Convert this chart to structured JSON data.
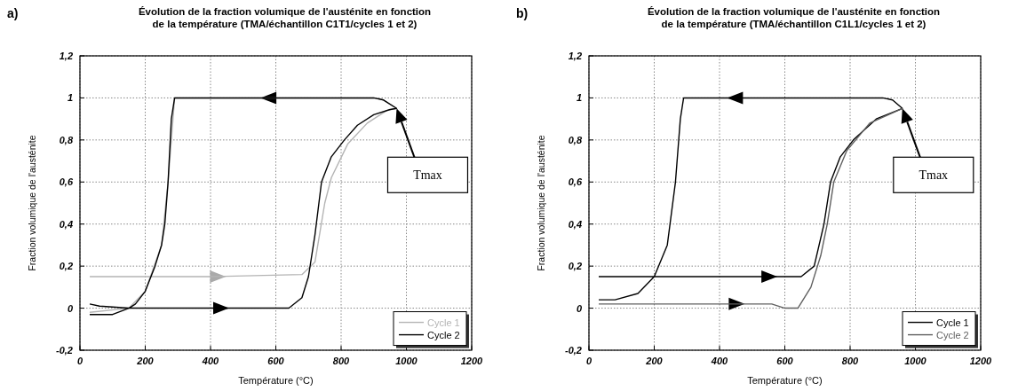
{
  "chart_data": [
    {
      "type": "line",
      "title": "Évolution de la fraction volumique de l'austénite en fonction\nde la température (TMA/échantillon C1T1/cycles 1 et 2)",
      "xlabel": "Température (°C)",
      "ylabel": "Fraction volumique de l'austénite",
      "xlim": [
        0,
        1200
      ],
      "xticks": [
        0,
        200,
        400,
        600,
        800,
        1000,
        1200
      ],
      "ylim": [
        -0.2,
        1.2
      ],
      "yticks": [
        {
          "value": -0.2,
          "label": "-0,2"
        },
        {
          "value": 0,
          "label": "0"
        },
        {
          "value": 0.2,
          "label": "0,2"
        },
        {
          "value": 0.4,
          "label": "0,4"
        },
        {
          "value": 0.6,
          "label": "0,6"
        },
        {
          "value": 0.8,
          "label": "0,8"
        },
        {
          "value": 1,
          "label": "1"
        },
        {
          "value": 1.2,
          "label": "1,2"
        }
      ],
      "grid": true,
      "legend": "bottom right",
      "annotations": [
        "a)",
        "Tmax"
      ],
      "series": [
        {
          "name": "Cycle 1",
          "color": "#b4b4b4",
          "x": [
            30,
            400,
            680,
            720,
            750,
            770,
            820,
            880,
            940,
            970,
            930,
            900,
            290,
            270,
            250,
            200,
            150,
            30
          ],
          "values": [
            0.15,
            0.15,
            0.16,
            0.22,
            0.5,
            0.62,
            0.78,
            0.88,
            0.94,
            0.95,
            0.99,
            1.0,
            1.0,
            0.6,
            0.3,
            0.08,
            0.0,
            -0.02
          ]
        },
        {
          "name": "Cycle 2",
          "color": "#000000",
          "x": [
            30,
            60,
            150,
            400,
            640,
            680,
            700,
            720,
            740,
            770,
            810,
            850,
            900,
            950,
            970,
            930,
            900,
            800,
            600,
            400,
            290,
            280,
            270,
            260,
            250,
            230,
            200,
            170,
            150,
            100,
            30
          ],
          "values": [
            0.02,
            0.01,
            0.0,
            0.0,
            0.0,
            0.05,
            0.15,
            0.35,
            0.6,
            0.72,
            0.8,
            0.87,
            0.92,
            0.945,
            0.95,
            0.99,
            1.0,
            1.0,
            1.0,
            1.0,
            1.0,
            0.9,
            0.6,
            0.4,
            0.3,
            0.2,
            0.08,
            0.02,
            0.0,
            -0.03,
            -0.03
          ]
        }
      ]
    },
    {
      "type": "line",
      "title": "Évolution de la fraction volumique de l'austénite en fonction\nde la température (TMA/échantillon C1L1/cycles 1 et 2)",
      "xlabel": "Température (°C)",
      "ylabel": "Fraction volumique de l'austénite",
      "xlim": [
        0,
        1200
      ],
      "xticks": [
        0,
        200,
        400,
        600,
        800,
        1000,
        1200
      ],
      "ylim": [
        -0.2,
        1.2
      ],
      "yticks": [
        {
          "value": -0.2,
          "label": "-0,2"
        },
        {
          "value": 0,
          "label": "0"
        },
        {
          "value": 0.2,
          "label": "0,2"
        },
        {
          "value": 0.4,
          "label": "0,4"
        },
        {
          "value": 0.6,
          "label": "0,6"
        },
        {
          "value": 0.8,
          "label": "0,8"
        },
        {
          "value": 1,
          "label": "1"
        },
        {
          "value": 1.2,
          "label": "1,2"
        }
      ],
      "grid": true,
      "legend": "bottom right",
      "annotations": [
        "b)",
        "Tmax"
      ],
      "series": [
        {
          "name": "Cycle 1",
          "color": "#000000",
          "x": [
            30,
            80,
            550,
            650,
            690,
            720,
            740,
            770,
            810,
            880,
            960,
            930,
            900,
            600,
            450,
            290,
            280,
            265,
            240,
            200,
            150,
            80,
            30
          ],
          "values": [
            0.15,
            0.15,
            0.15,
            0.15,
            0.2,
            0.4,
            0.6,
            0.72,
            0.8,
            0.9,
            0.95,
            0.99,
            1.0,
            1.0,
            1.0,
            1.0,
            0.9,
            0.6,
            0.3,
            0.15,
            0.07,
            0.04,
            0.04
          ]
        },
        {
          "name": "Cycle 2",
          "color": "#606060",
          "x": [
            30,
            450,
            560,
            600,
            640,
            680,
            710,
            730,
            750,
            790,
            860,
            960
          ],
          "values": [
            0.02,
            0.02,
            0.02,
            0.0,
            0.0,
            0.1,
            0.25,
            0.4,
            0.6,
            0.75,
            0.88,
            0.95
          ]
        }
      ]
    }
  ]
}
